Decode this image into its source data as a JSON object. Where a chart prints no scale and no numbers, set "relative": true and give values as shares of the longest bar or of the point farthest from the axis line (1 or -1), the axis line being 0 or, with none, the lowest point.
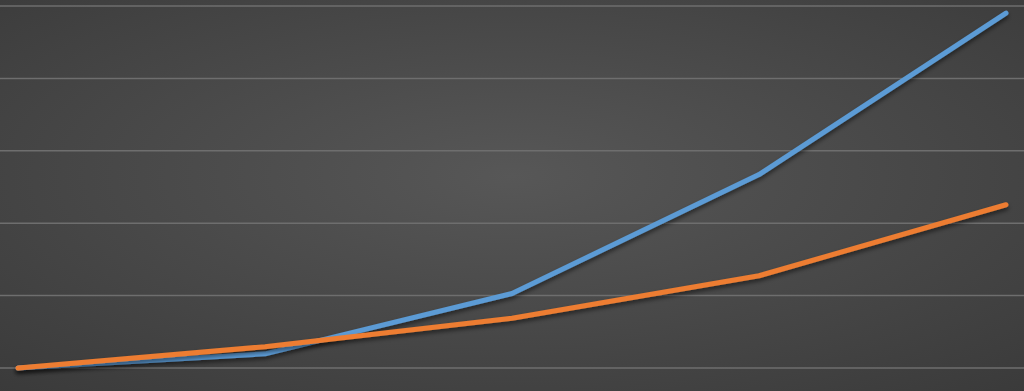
{
  "chart_data": {
    "type": "line",
    "relative": true,
    "grid": true,
    "categories": [
      null,
      null,
      null,
      null,
      null
    ],
    "series": [
      {
        "color": "#5b9bd5",
        "values": [
          0,
          0.04,
          0.21,
          0.545,
          1
        ]
      },
      {
        "color": "#ed7d31",
        "values": [
          0,
          0.06,
          0.14,
          0.26,
          0.46
        ]
      }
    ]
  }
}
